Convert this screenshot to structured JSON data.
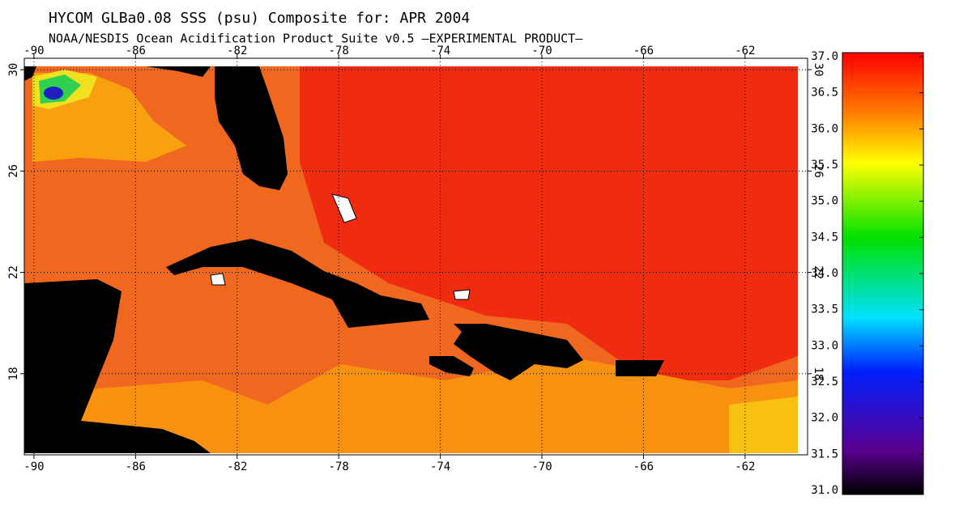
{
  "title": "HYCOM GLBa0.08 SSS (psu) Composite for: APR 2004",
  "subtitle": "NOAA/NESDIS Ocean Acidification Product Suite  v0.5 —EXPERIMENTAL PRODUCT—",
  "map": {
    "xlim": [
      -90.38,
      -59.54
    ],
    "ylim": [
      14.8,
      30.45
    ],
    "xticks": [
      -90,
      -86,
      -82,
      -78,
      -74,
      -70,
      -66,
      -62
    ],
    "yticks": [
      30,
      26,
      22,
      18
    ],
    "grid": true
  },
  "colorbar": {
    "lim": [
      31,
      37
    ],
    "ticks": [
      {
        "value": 37,
        "label": "37.0"
      },
      {
        "value": 36.5,
        "label": "36.5"
      },
      {
        "value": 36,
        "label": "36.0"
      },
      {
        "value": 35.5,
        "label": "35.5"
      },
      {
        "value": 35,
        "label": "35.0"
      },
      {
        "value": 34.5,
        "label": "34.5"
      },
      {
        "value": 34,
        "label": "34.0"
      },
      {
        "value": 33.5,
        "label": "33.5"
      },
      {
        "value": 33,
        "label": "33.0"
      },
      {
        "value": 32.5,
        "label": "32.5"
      },
      {
        "value": 32,
        "label": "32.0"
      },
      {
        "value": 31.5,
        "label": "31.5"
      },
      {
        "value": 31,
        "label": "31.0"
      }
    ]
  }
}
